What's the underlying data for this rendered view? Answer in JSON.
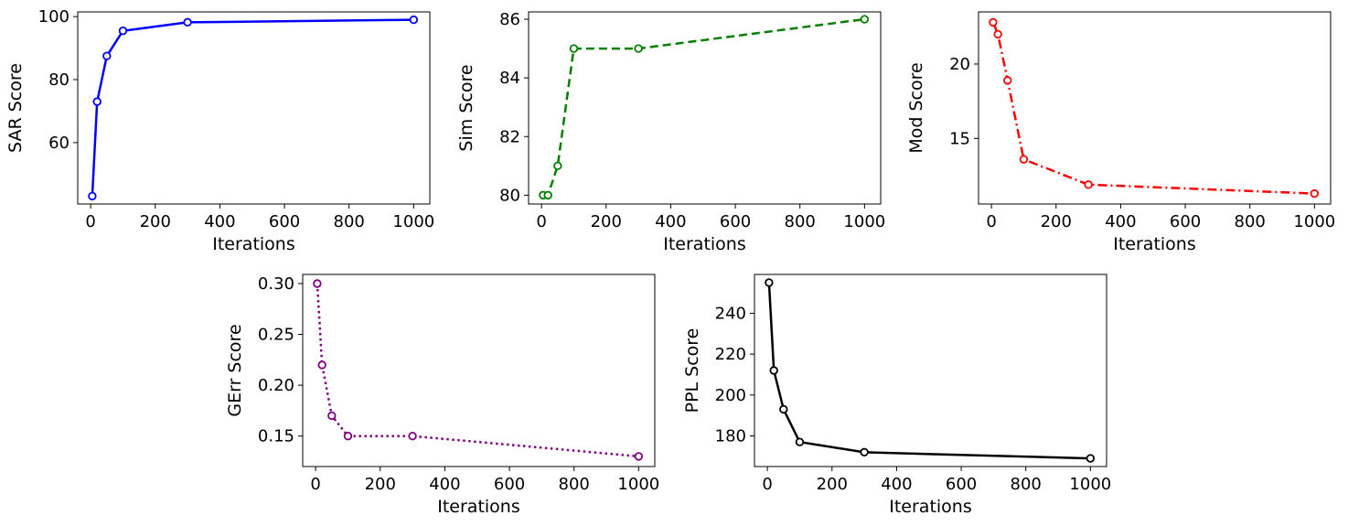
{
  "chart_data": [
    {
      "type": "line",
      "xlabel": "Iterations",
      "ylabel": "SAR Score",
      "x": [
        5,
        20,
        50,
        100,
        300,
        1000
      ],
      "values": [
        43,
        73,
        87.5,
        95.5,
        98.2,
        99
      ],
      "xlim": [
        -40,
        1050
      ],
      "ylim": [
        40.5,
        101.5
      ],
      "xticks": [
        0,
        200,
        400,
        600,
        800,
        1000
      ],
      "yticks": [
        60,
        80,
        100
      ],
      "color": "#0000ff",
      "dash": "solid"
    },
    {
      "type": "line",
      "xlabel": "Iterations",
      "ylabel": "Sim Score",
      "x": [
        5,
        20,
        50,
        100,
        300,
        1000
      ],
      "values": [
        80,
        80,
        81,
        85,
        85,
        86
      ],
      "xlim": [
        -40,
        1050
      ],
      "ylim": [
        79.7,
        86.25
      ],
      "xticks": [
        0,
        200,
        400,
        600,
        800,
        1000
      ],
      "yticks": [
        80,
        82,
        84,
        86
      ],
      "color": "#008000",
      "dash": "dashed"
    },
    {
      "type": "line",
      "xlabel": "Iterations",
      "ylabel": "Mod Score",
      "x": [
        5,
        20,
        50,
        100,
        300,
        1000
      ],
      "values": [
        22.8,
        22,
        18.9,
        13.6,
        11.9,
        11.3
      ],
      "xlim": [
        -40,
        1050
      ],
      "ylim": [
        10.6,
        23.5
      ],
      "xticks": [
        0,
        200,
        400,
        600,
        800,
        1000
      ],
      "yticks": [
        15,
        20
      ],
      "color": "#ff0000",
      "dash": "dashdot"
    },
    {
      "type": "line",
      "xlabel": "Iterations",
      "ylabel": "GErr Score",
      "x": [
        5,
        20,
        50,
        100,
        300,
        1000
      ],
      "values": [
        0.3,
        0.22,
        0.17,
        0.15,
        0.15,
        0.13
      ],
      "xlim": [
        -40,
        1050
      ],
      "ylim": [
        0.12,
        0.309
      ],
      "xticks": [
        0,
        200,
        400,
        600,
        800,
        1000
      ],
      "yticks": [
        0.15,
        0.2,
        0.25,
        0.3
      ],
      "ytickformat": 2,
      "color": "#800080",
      "dash": "dotted"
    },
    {
      "type": "line",
      "xlabel": "Iterations",
      "ylabel": "PPL Score",
      "x": [
        5,
        20,
        50,
        100,
        300,
        1000
      ],
      "values": [
        255,
        212,
        193,
        177,
        172,
        169
      ],
      "xlim": [
        -40,
        1050
      ],
      "ylim": [
        165,
        259
      ],
      "xticks": [
        0,
        200,
        400,
        600,
        800,
        1000
      ],
      "yticks": [
        180,
        200,
        220,
        240
      ],
      "color": "#000000",
      "dash": "solid"
    }
  ]
}
